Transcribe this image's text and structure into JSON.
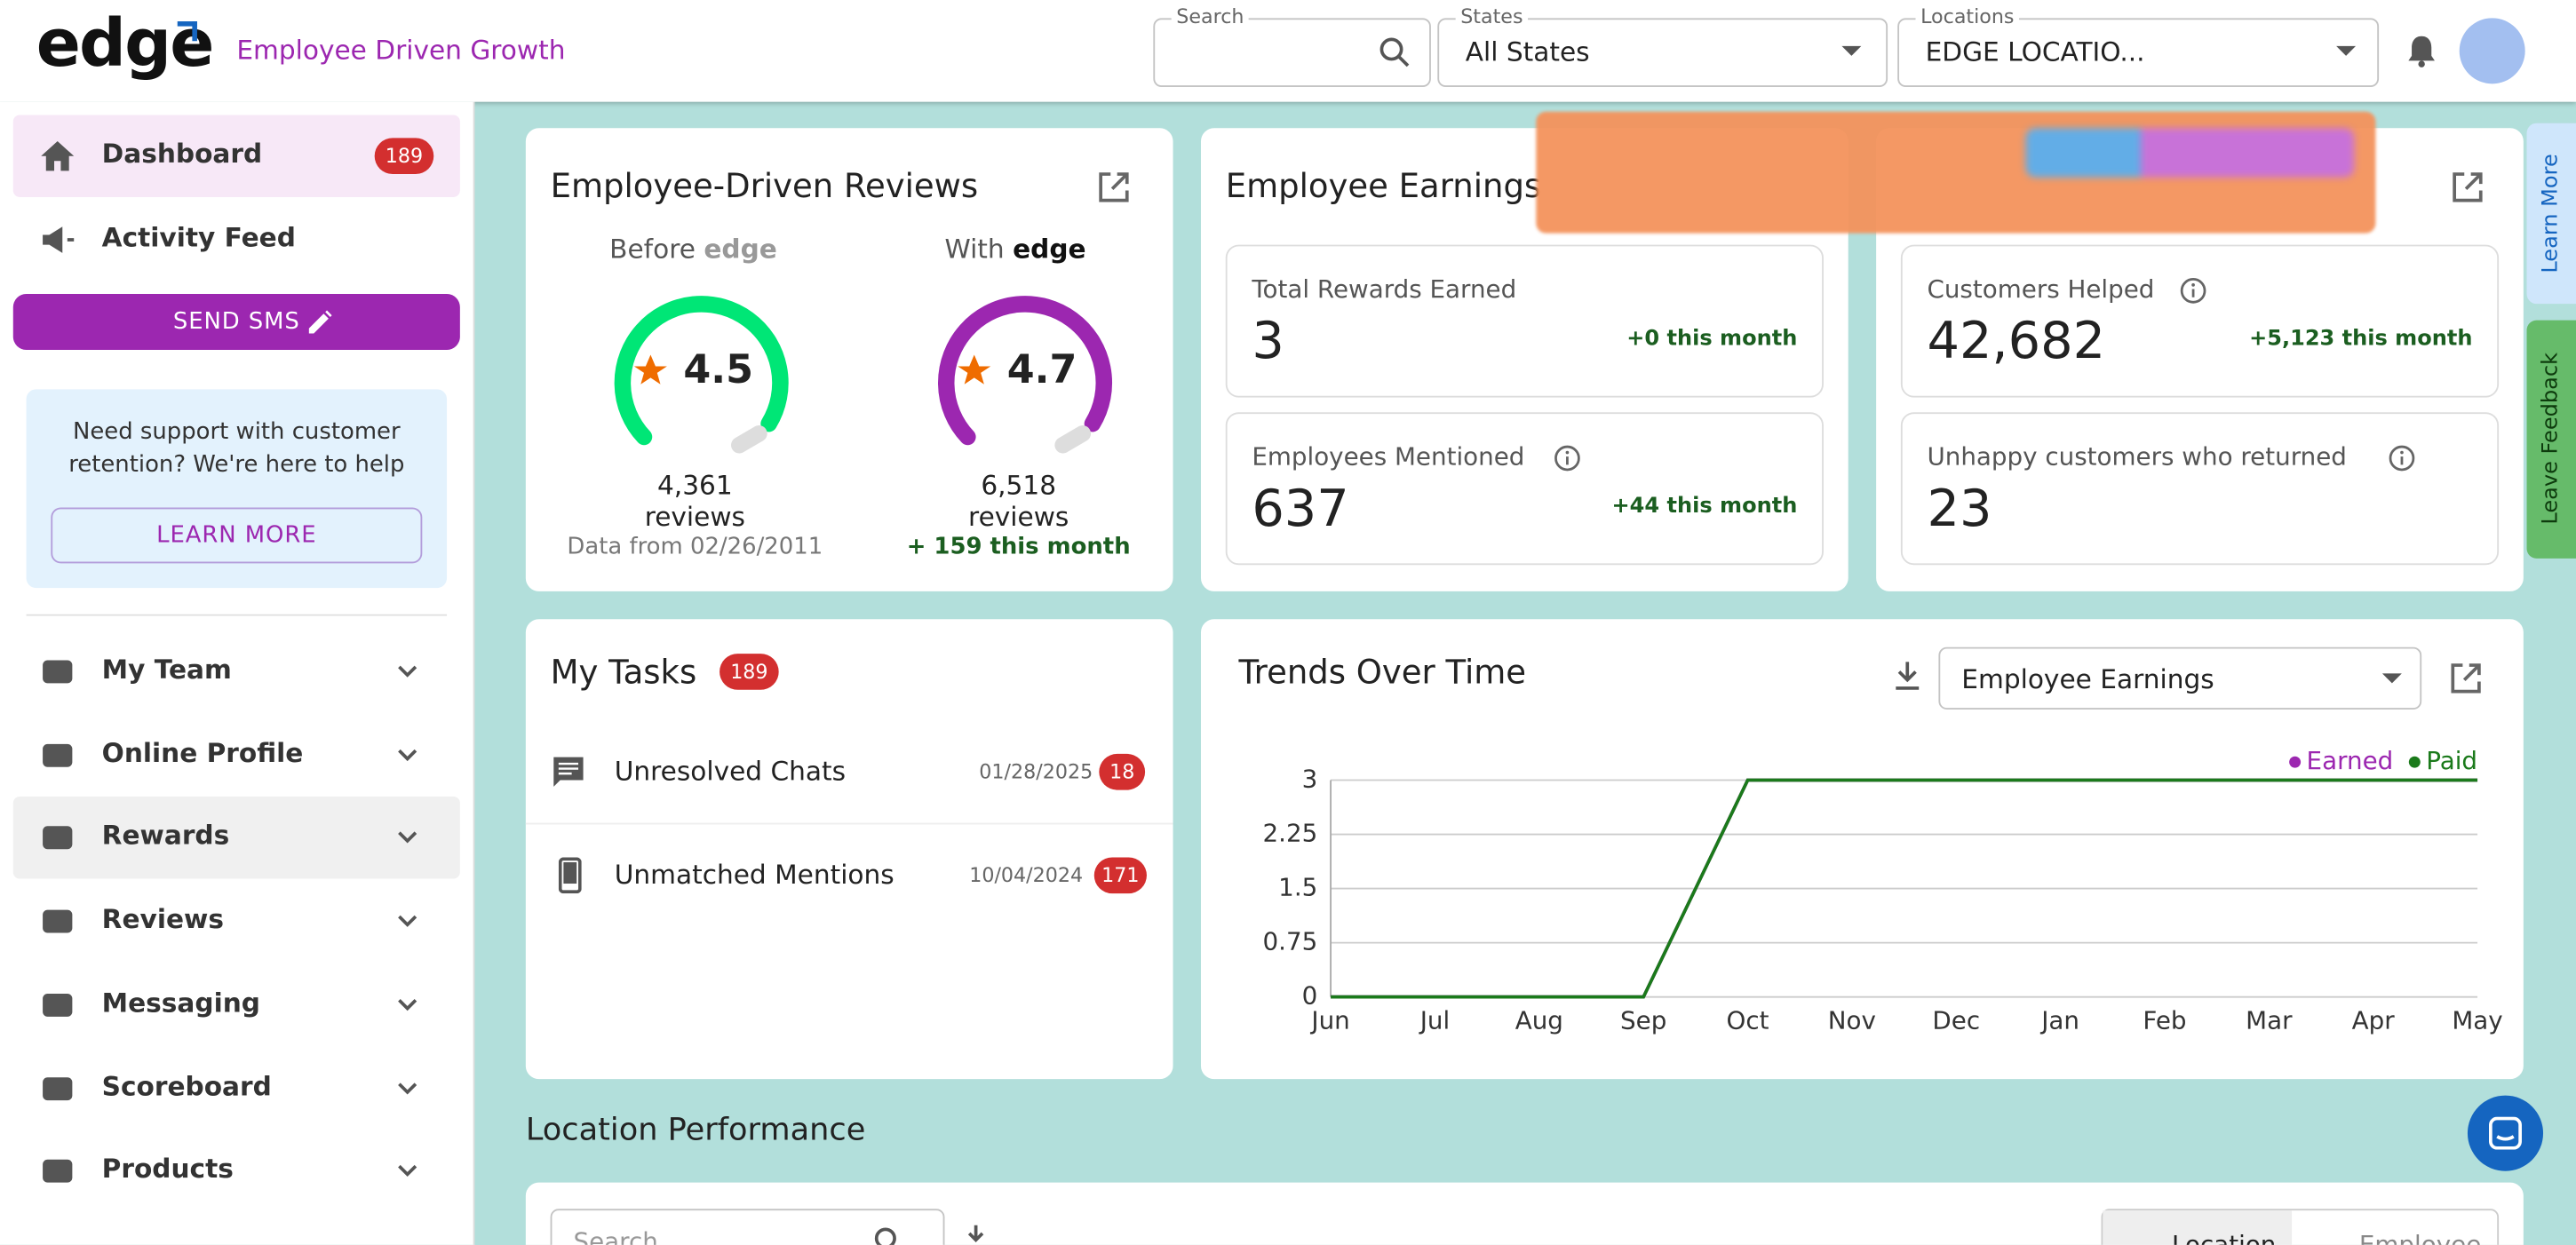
{
  "header": {
    "logo": "edge",
    "tagline": "Employee Driven Growth",
    "search_label": "Search",
    "states_label": "States",
    "states_value": "All States",
    "locations_label": "Locations",
    "locations_value": "EDGE LOCATIO..."
  },
  "sidebar": {
    "dashboard": "Dashboard",
    "dashboard_badge": 189,
    "activity_feed": "Activity Feed",
    "send_sms": "SEND SMS",
    "support_text": "Need support with customer retention? We're here to help",
    "learn_more": "LEARN MORE",
    "menu": [
      "My Team",
      "Online Profile",
      "Rewards",
      "Reviews",
      "Messaging",
      "Scoreboard",
      "Products"
    ]
  },
  "reviews_card": {
    "title": "Employee-Driven Reviews",
    "before_label": "Before",
    "before_rating": 4.5,
    "before_reviews": "4,361 reviews",
    "data_from": "Data from 02/26/2011",
    "with_label": "With",
    "with_rating": 4.7,
    "with_reviews": "6,518 reviews",
    "this_month": "+ 159 this month"
  },
  "earnings_card": {
    "title": "Employee Earnings",
    "stats": [
      {
        "label": "Total Rewards Earned",
        "value": 3,
        "delta": "+0 this month"
      },
      {
        "label": "Employees Mentioned",
        "value": 637,
        "delta": "+44 this month"
      },
      {
        "label": "Customers Helped",
        "value": "42,682",
        "delta": "+5,123 this month"
      },
      {
        "label": "Unhappy customers who returned",
        "value": 23
      }
    ]
  },
  "tasks_card": {
    "title": "My Tasks",
    "badge": 189,
    "items": [
      {
        "label": "Unresolved Chats",
        "date": "01/28/2025",
        "count": 18
      },
      {
        "label": "Unmatched Mentions",
        "date": "10/04/2024",
        "count": 171
      }
    ]
  },
  "trends_controls": {
    "select": "Employee Earnings"
  },
  "chart_data": {
    "type": "line",
    "title": "Trends Over Time",
    "categories": [
      "Jun",
      "Jul",
      "Aug",
      "Sep",
      "Oct",
      "Nov",
      "Dec",
      "Jan",
      "Feb",
      "Mar",
      "Apr",
      "May"
    ],
    "series": [
      {
        "name": "Earned",
        "color": "#9c27b0",
        "values": [
          0,
          0,
          0,
          0,
          3,
          3,
          3,
          3,
          3,
          3,
          3,
          3
        ]
      },
      {
        "name": "Paid",
        "color": "#1b7a1b",
        "values": [
          0,
          0,
          0,
          0,
          3,
          3,
          3,
          3,
          3,
          3,
          3,
          3
        ]
      }
    ],
    "ylim": [
      0,
      3
    ],
    "yticks": [
      0,
      0.75,
      1.5,
      2.25,
      3
    ],
    "grid": true,
    "legend": "top-right"
  },
  "location_performance": {
    "title": "Location Performance",
    "search_placeholder": "Search",
    "tabs": [
      "Location",
      "Employee"
    ]
  },
  "side_tabs": [
    "Learn More",
    "Leave Feedback"
  ]
}
